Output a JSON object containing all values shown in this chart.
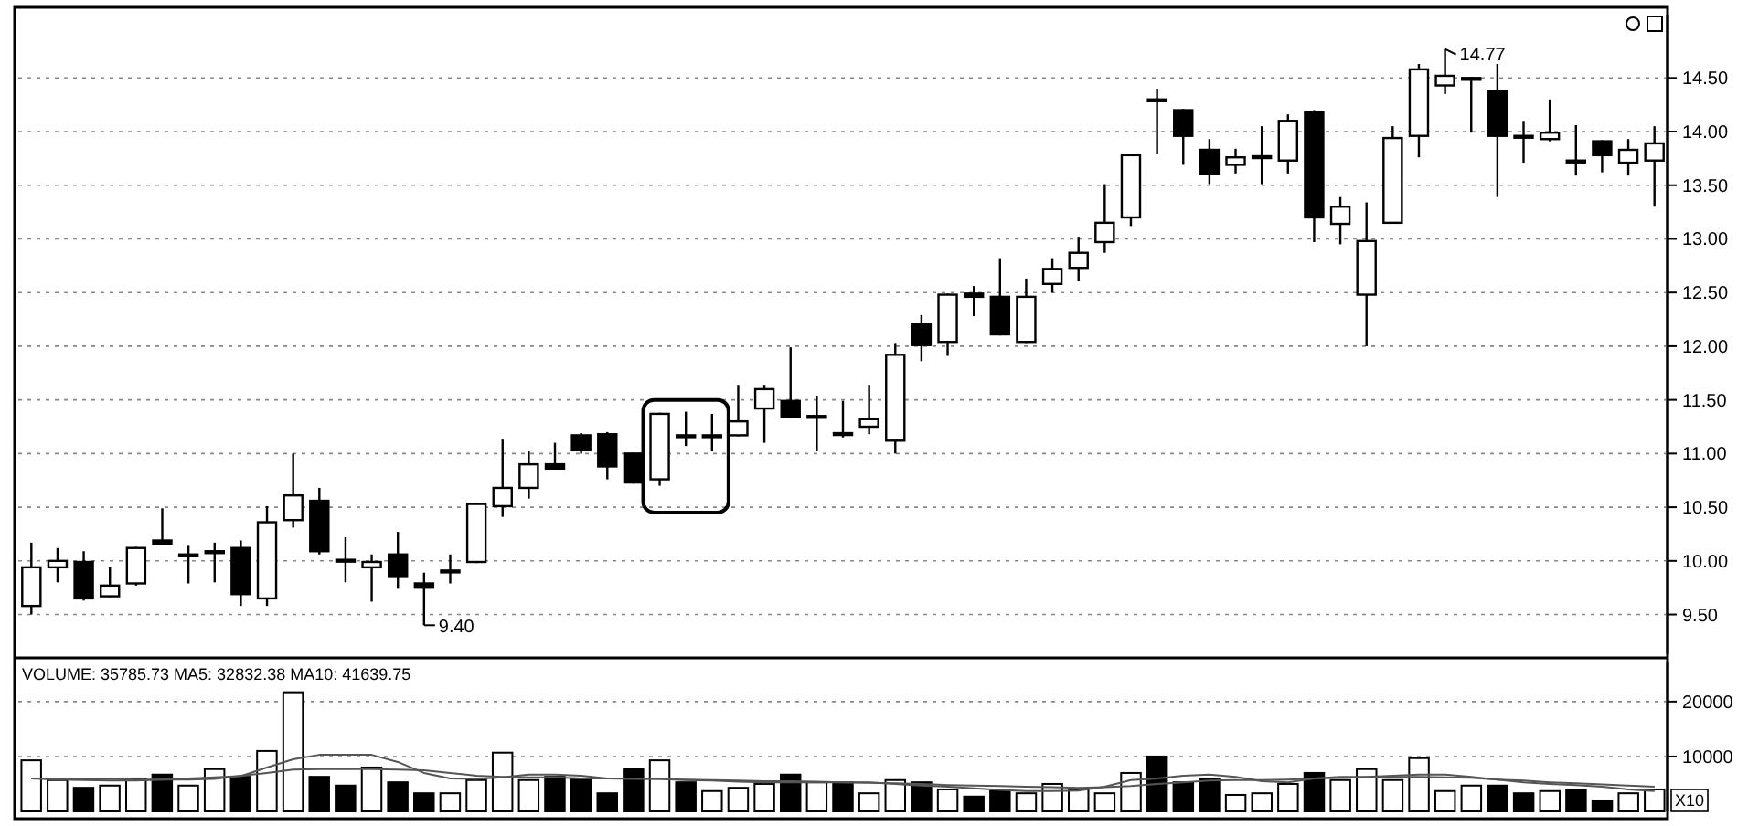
{
  "chart_data": [
    {
      "type": "candlestick",
      "categories": [
        null,
        null,
        null,
        null,
        null,
        null,
        null,
        null,
        null,
        null,
        null,
        null,
        null,
        null,
        null,
        null,
        null,
        null,
        null,
        null,
        null,
        null,
        null,
        null,
        null,
        null,
        null,
        null,
        null,
        null,
        null,
        null,
        null,
        null,
        null,
        null,
        null,
        null,
        null,
        null,
        null,
        null,
        null,
        null,
        null,
        null,
        null,
        null,
        null,
        null,
        null,
        null,
        null,
        null,
        null,
        null,
        null,
        null,
        null,
        null,
        null,
        null,
        null
      ],
      "ohlc": [
        [
          9.58,
          10.17,
          9.5,
          9.94
        ],
        [
          9.94,
          10.12,
          9.8,
          10.0
        ],
        [
          9.99,
          10.09,
          9.63,
          9.65
        ],
        [
          9.67,
          9.94,
          9.66,
          9.77
        ],
        [
          9.79,
          10.13,
          9.77,
          10.12
        ],
        [
          10.19,
          10.49,
          10.15,
          10.16
        ],
        [
          10.06,
          10.14,
          9.79,
          10.05
        ],
        [
          10.08,
          10.17,
          9.8,
          10.09
        ],
        [
          10.12,
          10.19,
          9.58,
          9.69
        ],
        [
          9.65,
          10.51,
          9.58,
          10.36
        ],
        [
          10.38,
          11.0,
          10.31,
          10.61
        ],
        [
          10.56,
          10.68,
          10.06,
          10.09
        ],
        [
          10.01,
          10.22,
          9.8,
          10.0
        ],
        [
          9.94,
          10.06,
          9.62,
          9.99
        ],
        [
          10.06,
          10.27,
          9.74,
          9.85
        ],
        [
          9.79,
          9.89,
          9.4,
          9.75
        ],
        [
          9.9,
          10.06,
          9.79,
          9.91
        ],
        [
          9.99,
          10.54,
          9.98,
          10.53
        ],
        [
          10.51,
          11.13,
          10.41,
          10.68
        ],
        [
          10.68,
          11.02,
          10.58,
          10.9
        ],
        [
          10.9,
          11.1,
          10.85,
          10.86
        ],
        [
          11.17,
          11.19,
          11.0,
          11.03
        ],
        [
          11.18,
          11.2,
          10.76,
          10.88
        ],
        [
          11.0,
          11.0,
          10.72,
          10.73
        ],
        [
          10.76,
          11.38,
          10.7,
          11.37
        ],
        [
          11.16,
          11.39,
          11.07,
          11.17
        ],
        [
          11.17,
          11.37,
          11.02,
          11.16
        ],
        [
          11.17,
          11.64,
          11.16,
          11.3
        ],
        [
          11.42,
          11.64,
          11.1,
          11.6
        ],
        [
          11.49,
          11.99,
          11.33,
          11.34
        ],
        [
          11.35,
          11.54,
          11.02,
          11.34
        ],
        [
          11.19,
          11.49,
          11.15,
          11.18
        ],
        [
          11.25,
          11.64,
          11.18,
          11.32
        ],
        [
          11.12,
          12.03,
          11.0,
          11.92
        ],
        [
          12.21,
          12.29,
          11.86,
          12.01
        ],
        [
          12.04,
          12.49,
          11.91,
          12.48
        ],
        [
          12.49,
          12.56,
          12.28,
          12.46
        ],
        [
          12.46,
          12.82,
          12.1,
          12.11
        ],
        [
          12.04,
          12.63,
          12.03,
          12.46
        ],
        [
          12.58,
          12.82,
          12.5,
          12.72
        ],
        [
          12.73,
          13.02,
          12.61,
          12.87
        ],
        [
          12.97,
          13.51,
          12.87,
          13.15
        ],
        [
          13.2,
          13.79,
          13.12,
          13.78
        ],
        [
          14.3,
          14.4,
          13.79,
          14.29
        ],
        [
          14.2,
          14.21,
          13.69,
          13.96
        ],
        [
          13.83,
          13.93,
          13.51,
          13.61
        ],
        [
          13.69,
          13.84,
          13.61,
          13.76
        ],
        [
          13.77,
          14.05,
          13.51,
          13.76
        ],
        [
          13.73,
          14.16,
          13.61,
          14.1
        ],
        [
          14.18,
          14.2,
          12.97,
          13.2
        ],
        [
          13.14,
          13.39,
          12.95,
          13.3
        ],
        [
          12.48,
          13.34,
          12.0,
          12.98
        ],
        [
          13.15,
          14.05,
          13.14,
          13.94
        ],
        [
          13.96,
          14.63,
          13.76,
          14.58
        ],
        [
          14.43,
          14.77,
          14.35,
          14.52
        ],
        [
          14.5,
          14.51,
          13.99,
          14.49
        ],
        [
          14.38,
          14.63,
          13.39,
          13.96
        ],
        [
          13.96,
          14.1,
          13.71,
          13.95
        ],
        [
          13.93,
          14.3,
          13.91,
          13.99
        ],
        [
          13.73,
          14.06,
          13.59,
          13.72
        ],
        [
          13.91,
          13.92,
          13.62,
          13.78
        ],
        [
          13.71,
          13.93,
          13.59,
          13.83
        ],
        [
          13.73,
          14.05,
          13.3,
          13.89
        ]
      ],
      "ylim": [
        9.13,
        15.09
      ],
      "yticks": [
        {
          "value": 9.5,
          "label": "9.50"
        },
        {
          "value": 10,
          "label": "10.00"
        },
        {
          "value": 10.5,
          "label": "10.50"
        },
        {
          "value": 11,
          "label": "11.00"
        },
        {
          "value": 11.5,
          "label": "11.50"
        },
        {
          "value": 12,
          "label": "12.00"
        },
        {
          "value": 12.5,
          "label": "12.50"
        },
        {
          "value": 13,
          "label": "13.00"
        },
        {
          "value": 13.5,
          "label": "13.50"
        },
        {
          "value": 14,
          "label": "14.00"
        },
        {
          "value": 14.5,
          "label": "14.50"
        }
      ],
      "grid": "y",
      "tick_labels": "y",
      "annotations": [
        "14.77",
        "9.40"
      ]
    },
    {
      "type": "bar",
      "title": "VOLUME: 35785.73  MA5: 32832.38  MA10: 41639.75",
      "categories": [
        null,
        null,
        null,
        null,
        null,
        null,
        null,
        null,
        null,
        null,
        null,
        null,
        null,
        null,
        null,
        null,
        null,
        null,
        null,
        null,
        null,
        null,
        null,
        null,
        null,
        null,
        null,
        null,
        null,
        null,
        null,
        null,
        null,
        null,
        null,
        null,
        null,
        null,
        null,
        null,
        null,
        null,
        null,
        null,
        null,
        null,
        null,
        null,
        null,
        null,
        null,
        null,
        null,
        null,
        null,
        null,
        null,
        null,
        null,
        null,
        null,
        null,
        null
      ],
      "series": [
        {
          "type": "bar",
          "values": [
            9300,
            5700,
            4300,
            4700,
            6000,
            6700,
            4700,
            7700,
            6300,
            11000,
            21700,
            6300,
            4700,
            8000,
            5300,
            3300,
            3300,
            5700,
            10700,
            5700,
            6300,
            6000,
            3300,
            7700,
            9300,
            5300,
            3700,
            4300,
            5000,
            6700,
            5300,
            5300,
            3300,
            5700,
            5300,
            4000,
            2700,
            3700,
            3300,
            5000,
            4000,
            3300,
            7000,
            10000,
            5300,
            6000,
            3000,
            3300,
            5000,
            7000,
            5700,
            7700,
            5700,
            9700,
            3700,
            4700,
            4700,
            3300,
            3700,
            4000,
            2000,
            3300,
            4000
          ],
          "colors": [
            "#ffffff",
            "#ffffff",
            "#000000",
            "#ffffff",
            "#ffffff",
            "#000000",
            "#ffffff",
            "#ffffff",
            "#000000",
            "#ffffff",
            "#ffffff",
            "#000000",
            "#000000",
            "#ffffff",
            "#000000",
            "#000000",
            "#ffffff",
            "#ffffff",
            "#ffffff",
            "#ffffff",
            "#000000",
            "#000000",
            "#000000",
            "#000000",
            "#ffffff",
            "#000000",
            "#ffffff",
            "#ffffff",
            "#ffffff",
            "#000000",
            "#ffffff",
            "#000000",
            "#ffffff",
            "#ffffff",
            "#000000",
            "#ffffff",
            "#000000",
            "#000000",
            "#ffffff",
            "#ffffff",
            "#ffffff",
            "#ffffff",
            "#ffffff",
            "#000000",
            "#000000",
            "#000000",
            "#ffffff",
            "#ffffff",
            "#ffffff",
            "#000000",
            "#ffffff",
            "#ffffff",
            "#ffffff",
            "#ffffff",
            "#ffffff",
            "#ffffff",
            "#000000",
            "#000000",
            "#ffffff",
            "#000000",
            "#000000",
            "#ffffff",
            "#ffffff"
          ]
        },
        {
          "type": "line",
          "color": "#555555",
          "values": [
            6000,
            5800,
            5700,
            5600,
            5600,
            5800,
            6000,
            6200,
            6400,
            8000,
            9500,
            10300,
            10300,
            10300,
            9000,
            7000,
            6000,
            5900,
            6200,
            6700,
            6700,
            6500,
            6000,
            6000,
            5900,
            5700,
            5600,
            5400,
            5300,
            5300,
            5300,
            5300,
            5300,
            5000,
            4700,
            4500,
            4200,
            3900,
            3700,
            3700,
            3800,
            4500,
            5700,
            6000,
            6500,
            6700,
            6300,
            5500,
            5300,
            6000,
            6300,
            6300,
            6500,
            6700,
            6700,
            6300,
            5800,
            5300,
            5000,
            4800,
            4500,
            4000,
            3700
          ]
        },
        {
          "type": "line",
          "color": "#555555",
          "values": [
            6000,
            6000,
            5900,
            5900,
            5800,
            5800,
            5800,
            5900,
            6500,
            7000,
            7600,
            7700,
            7700,
            7700,
            7600,
            7500,
            7000,
            6500,
            6300,
            6200,
            6200,
            6000,
            6000,
            5900,
            5900,
            5800,
            5700,
            5600,
            5500,
            5500,
            5400,
            5300,
            5200,
            5100,
            5000,
            4800,
            4700,
            4600,
            4500,
            4400,
            4300,
            4400,
            4600,
            5000,
            5300,
            5600,
            5700,
            5700,
            5800,
            6000,
            6100,
            6200,
            6300,
            6300,
            6200,
            6100,
            5800,
            5600,
            5300,
            5100,
            4900,
            4700,
            4500
          ]
        }
      ],
      "ylim": [
        0,
        27300
      ],
      "yticks": [
        10000,
        20000
      ],
      "grid": "y",
      "tick_labels": "y",
      "annotations": [
        "X10"
      ]
    }
  ]
}
